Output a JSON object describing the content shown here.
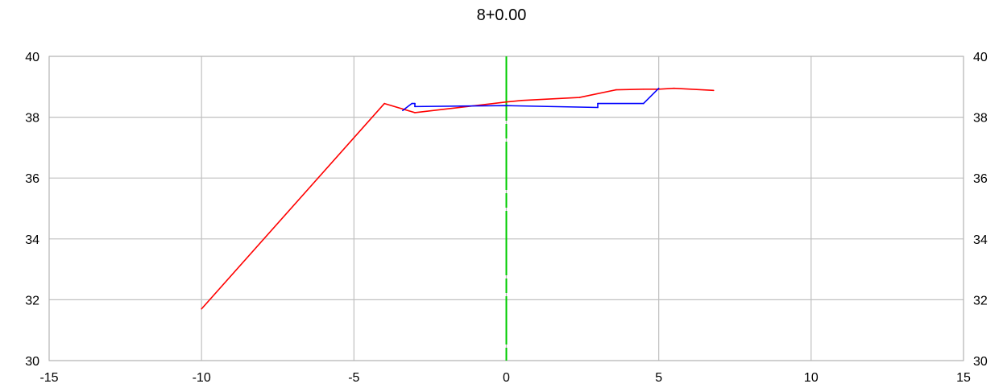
{
  "chart_data": {
    "type": "line",
    "title": "8+0.00",
    "xlabel": "",
    "ylabel": "",
    "xlim": [
      -15,
      15
    ],
    "ylim": [
      30,
      40
    ],
    "x_ticks": [
      -15,
      -10,
      -5,
      0,
      5,
      10,
      15
    ],
    "y_ticks": [
      30,
      32,
      34,
      36,
      38,
      40
    ],
    "y_ticks_right": true,
    "grid": true,
    "series": [
      {
        "color": "#ff0000",
        "x": [
          -10.0,
          -4.0,
          -3.0,
          0.0,
          0.5,
          2.4,
          3.6,
          4.5,
          5.0,
          5.5,
          6.8
        ],
        "y": [
          31.7,
          38.45,
          38.15,
          38.5,
          38.55,
          38.65,
          38.9,
          38.92,
          38.92,
          38.95,
          38.88
        ]
      },
      {
        "color": "#0000ff",
        "x": [
          -3.4,
          -3.1,
          -3.0,
          -3.0,
          0.0,
          3.0,
          3.0,
          4.5,
          5.0
        ],
        "y": [
          38.22,
          38.45,
          38.45,
          38.35,
          38.38,
          38.32,
          38.45,
          38.45,
          38.95
        ]
      }
    ],
    "vertical_marker": {
      "x": 0,
      "color": "#00cc00",
      "style": "dashed"
    }
  }
}
